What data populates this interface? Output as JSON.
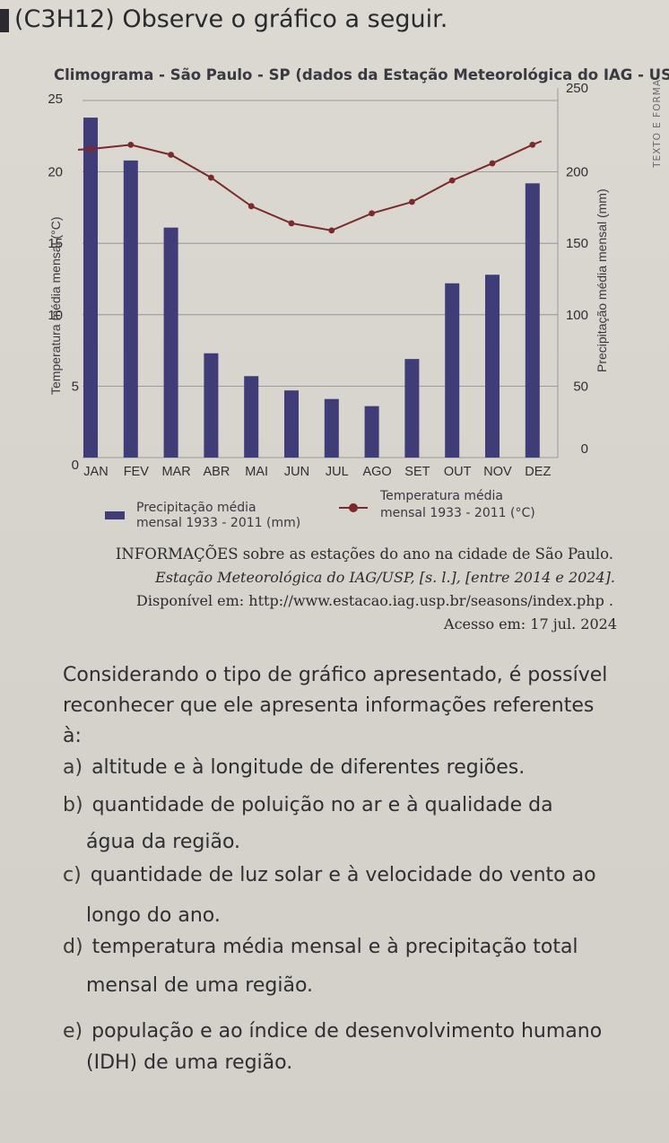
{
  "question": {
    "title": "(C3H12) Observe o gráfico a seguir.",
    "prompt": "Considerando o tipo de gráfico apresentado, é possível reconhecer que ele apresenta informações referentes à:",
    "options": [
      {
        "letter": "a)",
        "line1": "altitude e à longitude de diferentes regiões.",
        "line2": ""
      },
      {
        "letter": "b)",
        "line1": "quantidade de poluição no ar e à qualidade da",
        "line2": "água da região."
      },
      {
        "letter": "c)",
        "line1": "quantidade de luz solar e à velocidade do vento ao",
        "line2": "longo do ano."
      },
      {
        "letter": "d)",
        "line1": "temperatura média mensal e à precipitação total",
        "line2": "mensal de uma região."
      },
      {
        "letter": "e)",
        "line1": "população e ao índice de desenvolvimento humano",
        "line2": "(IDH) de uma região."
      }
    ]
  },
  "source": {
    "line1": "INFORMAÇÕES sobre as estações do ano na cidade de São Paulo.",
    "line2": "Estação Meteorológica do IAG/USP, [s. l.], [entre 2014 e 2024].",
    "line3": "Disponível em: http://www.estacao.iag.usp.br/seasons/index.php .",
    "line4": "Acesso em: 17 jul. 2024"
  },
  "side_text": "TEXTO E FORMA",
  "colors": {
    "bar": "#3f3c78",
    "line": "#7a2a2a",
    "grid": "#8a8890"
  },
  "chart_data": {
    "type": "bar+line",
    "title": "Climograma - São Paulo - SP (dados da Estação Meteorológica do IAG - USP)",
    "categories": [
      "JAN",
      "FEV",
      "MAR",
      "ABR",
      "MAI",
      "JUN",
      "JUL",
      "AGO",
      "SET",
      "OUT",
      "NOV",
      "DEZ"
    ],
    "series": [
      {
        "name_line1": "Precipitação média",
        "name_line2": "mensal 1933 - 2011 (mm)",
        "type": "bar",
        "axis": "right",
        "values": [
          238,
          208,
          161,
          73,
          57,
          47,
          41,
          36,
          69,
          122,
          128,
          192
        ]
      },
      {
        "name_line1": "Temperatura média",
        "name_line2": "mensal 1933 - 2011 (°C)",
        "type": "line",
        "axis": "left",
        "values": [
          21.6,
          21.9,
          21.2,
          19.6,
          17.6,
          16.4,
          15.9,
          17.1,
          17.9,
          19.4,
          20.6,
          21.9
        ]
      }
    ],
    "y_left": {
      "label": "Temperatura média mensal (°C)",
      "min": 0,
      "max": 25,
      "ticks": [
        0,
        5,
        10,
        15,
        20,
        25
      ]
    },
    "y_right": {
      "label": "Precipitação média mensal (mm)",
      "min": 0,
      "max": 250,
      "ticks": [
        0,
        50,
        100,
        150,
        200,
        250
      ]
    },
    "grid": true,
    "legend": "bottom"
  }
}
